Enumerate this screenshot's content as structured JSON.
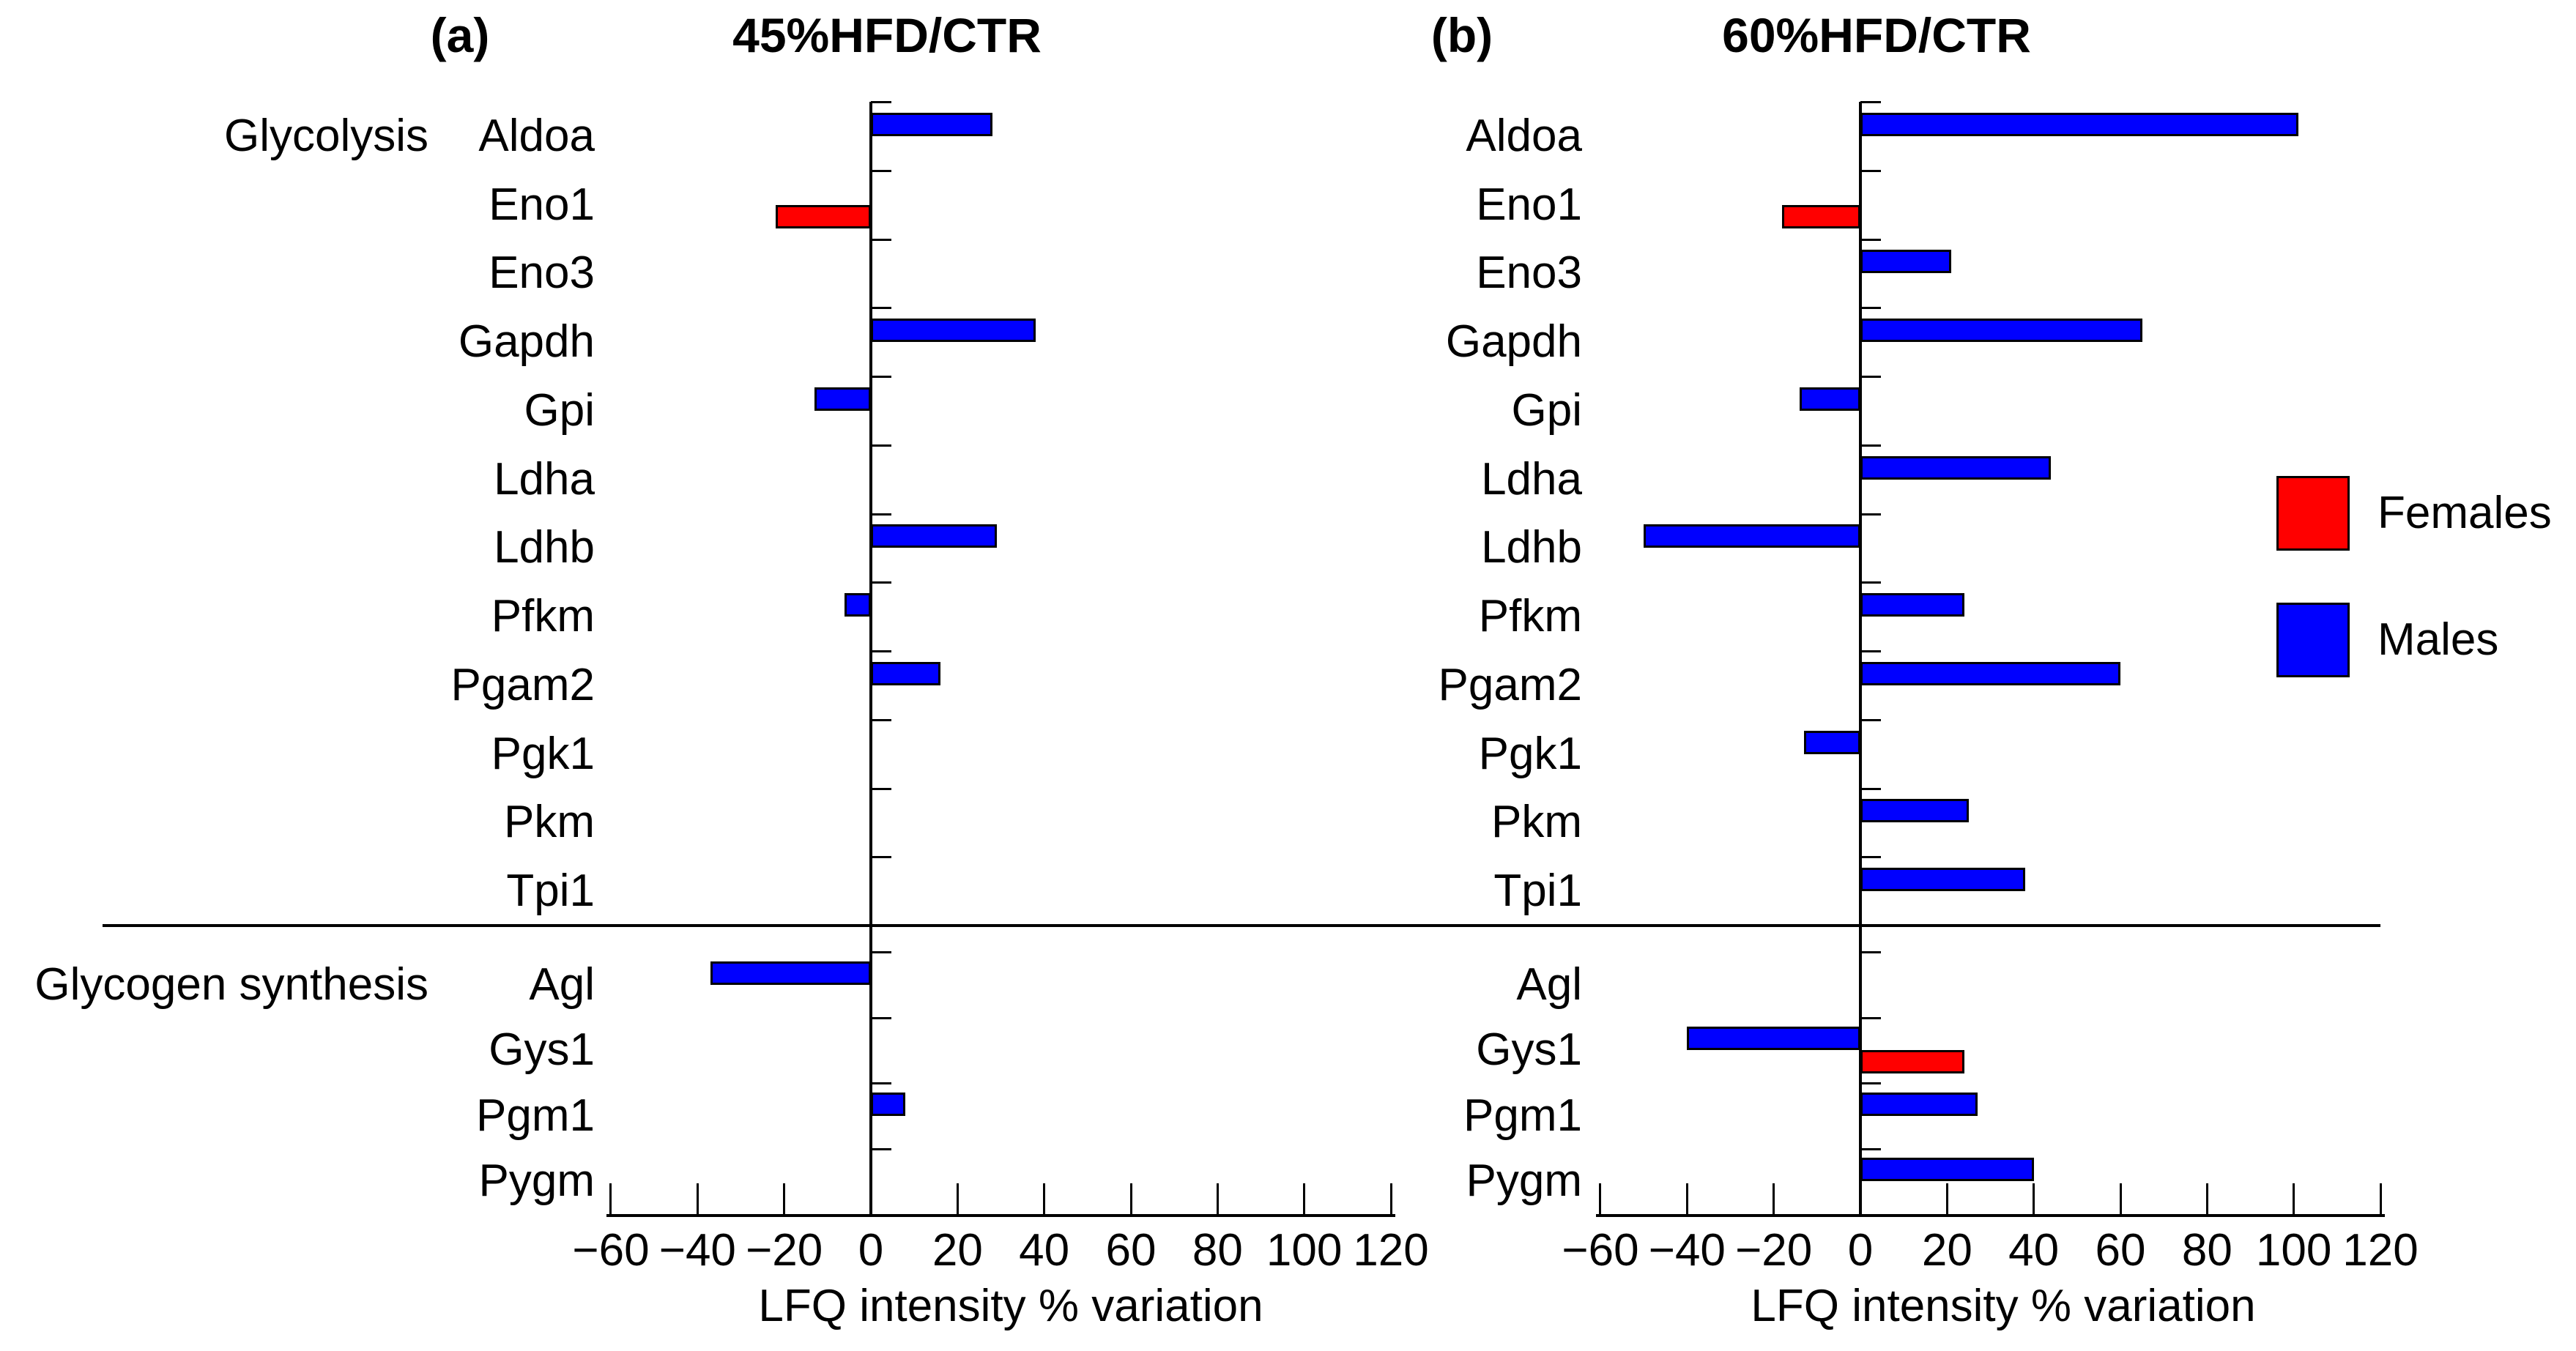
{
  "figure": {
    "sections": [
      {
        "label": "Glycolysis",
        "count": 12
      },
      {
        "label": "Glycogen synthesis",
        "count": 4
      }
    ],
    "legend": {
      "items": [
        {
          "label": "Females",
          "color": "#ff0000"
        },
        {
          "label": "Males",
          "color": "#0000ff"
        }
      ]
    }
  },
  "chart_data": [
    {
      "type": "bar",
      "orientation": "horizontal",
      "panel_tag": "(a)",
      "title": "45%HFD/CTR",
      "xlabel": "LFQ intensity % variation",
      "xlim": [
        -60,
        120
      ],
      "xticks": [
        -60,
        -40,
        -20,
        0,
        20,
        40,
        60,
        80,
        100,
        120
      ],
      "xtick_labels": [
        "−60",
        "−40",
        "−20",
        "0",
        "20",
        "40",
        "60",
        "80",
        "100",
        "120"
      ],
      "grid": false,
      "categories": [
        "Aldoa",
        "Eno1",
        "Eno3",
        "Gapdh",
        "Gpi",
        "Ldha",
        "Ldhb",
        "Pfkm",
        "Pgam2",
        "Pgk1",
        "Pkm",
        "Tpi1",
        "Agl",
        "Gys1",
        "Pgm1",
        "Pygm"
      ],
      "series": [
        {
          "name": "Females",
          "color": "#ff0000",
          "values": [
            null,
            -22,
            null,
            null,
            null,
            null,
            null,
            null,
            null,
            null,
            null,
            null,
            null,
            null,
            null,
            null
          ]
        },
        {
          "name": "Males",
          "color": "#0000ff",
          "values": [
            28,
            null,
            null,
            38,
            -13,
            null,
            29,
            -6,
            16,
            null,
            null,
            null,
            -37,
            null,
            8,
            null
          ]
        }
      ]
    },
    {
      "type": "bar",
      "orientation": "horizontal",
      "panel_tag": "(b)",
      "title": "60%HFD/CTR",
      "xlabel": "LFQ intensity % variation",
      "xlim": [
        -60,
        120
      ],
      "xticks": [
        -60,
        -40,
        -20,
        0,
        20,
        40,
        60,
        80,
        100,
        120
      ],
      "xtick_labels": [
        "−60",
        "−40",
        "−20",
        "0",
        "20",
        "40",
        "60",
        "80",
        "100",
        "120"
      ],
      "grid": false,
      "categories": [
        "Aldoa",
        "Eno1",
        "Eno3",
        "Gapdh",
        "Gpi",
        "Ldha",
        "Ldhb",
        "Pfkm",
        "Pgam2",
        "Pgk1",
        "Pkm",
        "Tpi1",
        "Agl",
        "Gys1",
        "Pgm1",
        "Pygm"
      ],
      "series": [
        {
          "name": "Females",
          "color": "#ff0000",
          "values": [
            null,
            -18,
            null,
            null,
            null,
            null,
            null,
            null,
            null,
            null,
            null,
            null,
            null,
            24,
            null,
            null
          ]
        },
        {
          "name": "Males",
          "color": "#0000ff",
          "values": [
            101,
            null,
            21,
            65,
            -14,
            44,
            -50,
            24,
            60,
            -13,
            25,
            38,
            null,
            -40,
            27,
            40
          ]
        }
      ]
    }
  ]
}
